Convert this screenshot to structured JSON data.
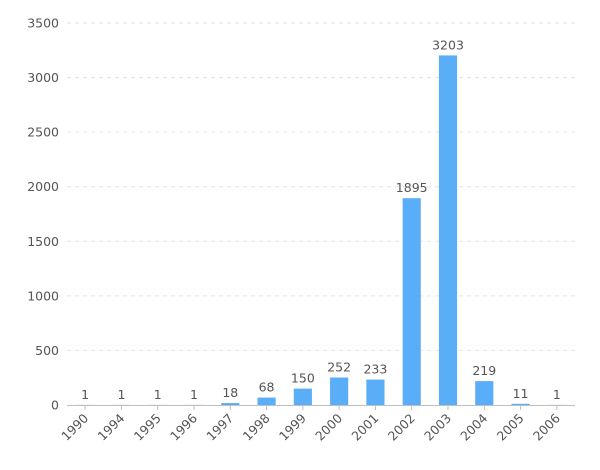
{
  "chart_data": {
    "type": "bar",
    "title": "",
    "xlabel": "",
    "ylabel": "",
    "categories": [
      "1990",
      "1994",
      "1995",
      "1996",
      "1997",
      "1998",
      "1999",
      "2000",
      "2001",
      "2002",
      "2003",
      "2004",
      "2005",
      "2006"
    ],
    "values": [
      1,
      1,
      1,
      1,
      18,
      68,
      150,
      252,
      233,
      1895,
      3203,
      219,
      11,
      1
    ],
    "ylim": [
      0,
      3500
    ],
    "yticks": [
      0,
      500,
      1000,
      1500,
      2000,
      2500,
      3000,
      3500
    ],
    "grid": true,
    "legend": "none",
    "bar_color": "#5aaef7"
  }
}
